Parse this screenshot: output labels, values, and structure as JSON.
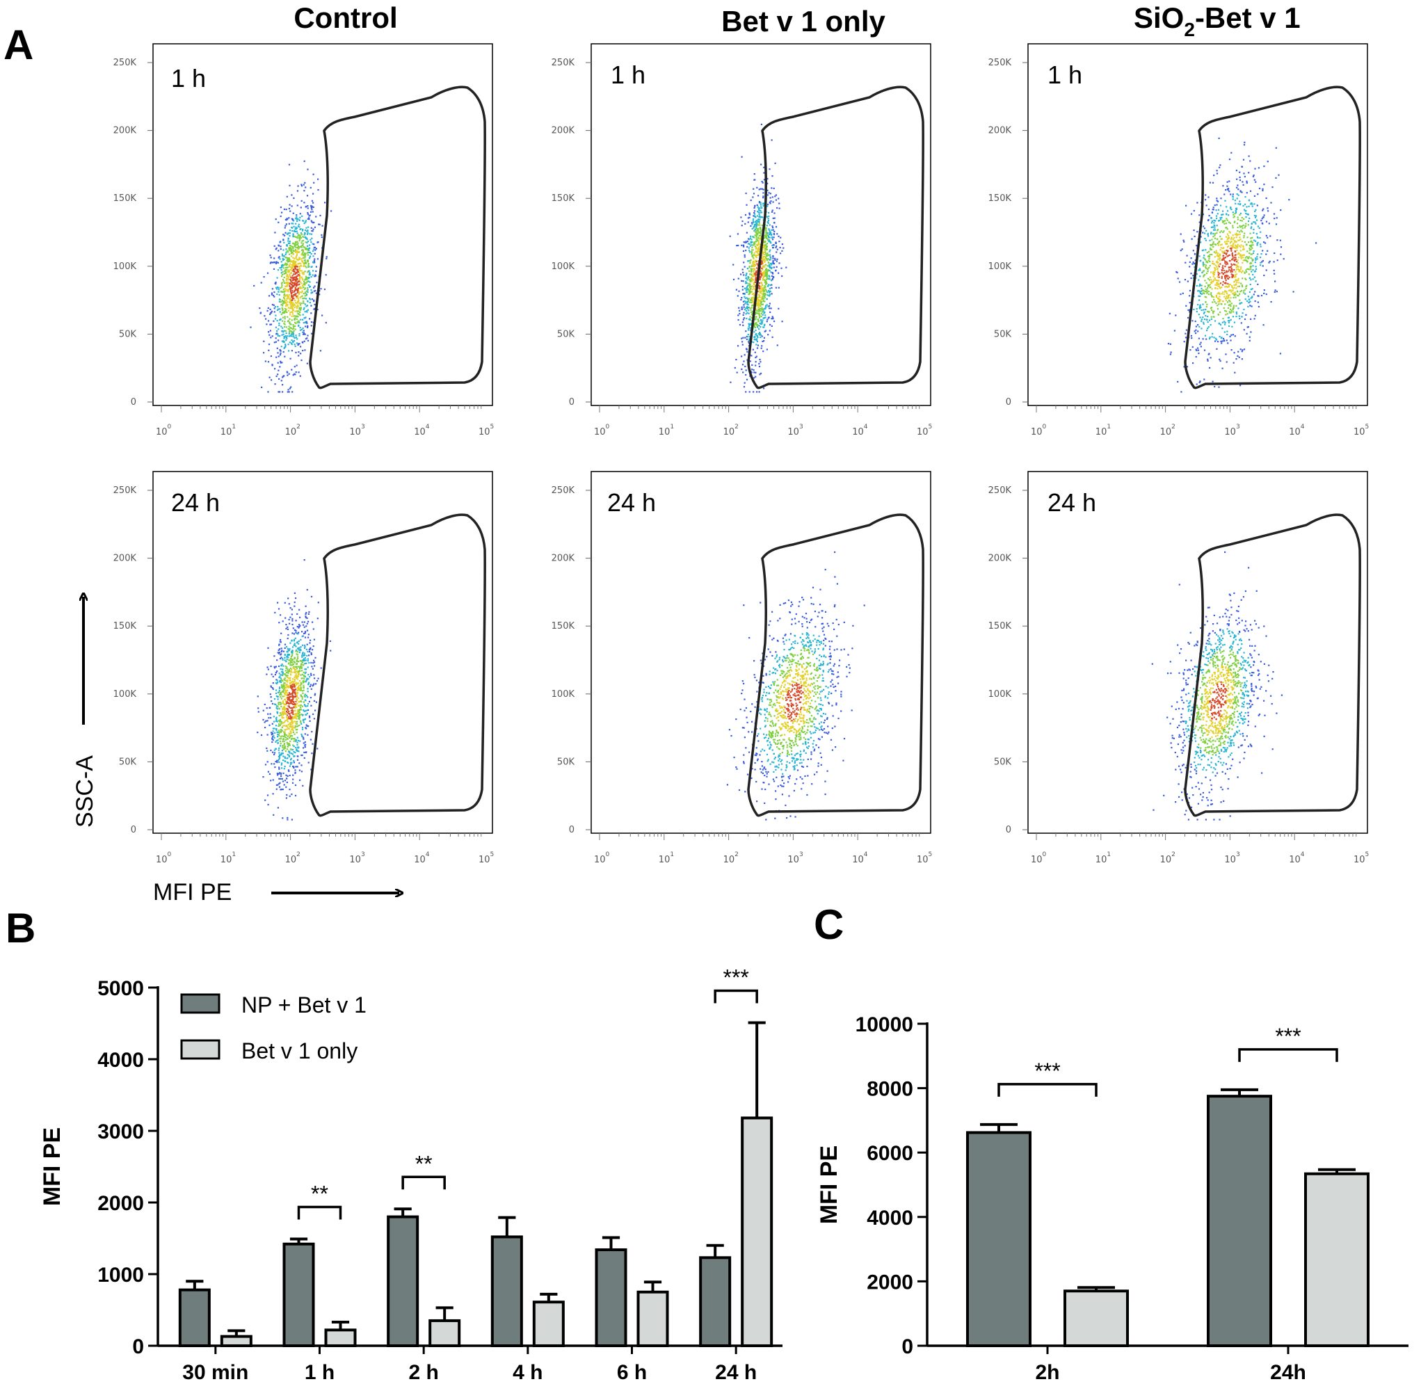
{
  "figure": {
    "panel_letters": [
      "A",
      "B",
      "C"
    ],
    "column_titles": [
      "Control",
      "Bet v 1 only",
      "SiO",
      "2",
      "-Bet v 1"
    ],
    "row_times": [
      "1 h",
      "24 h"
    ],
    "flow_axis": {
      "y_ticks": [
        "250K",
        "200K",
        "150K",
        "100K",
        "50K",
        "0"
      ],
      "x_ticks": [
        {
          "base": "10",
          "exp": "0"
        },
        {
          "base": "10",
          "exp": "1"
        },
        {
          "base": "10",
          "exp": "2"
        },
        {
          "base": "10",
          "exp": "3"
        },
        {
          "base": "10",
          "exp": "4"
        },
        {
          "base": "10",
          "exp": "5"
        }
      ],
      "y_name": "SSC-A",
      "x_name": "MFI PE"
    },
    "colors": {
      "dark_bar": "#6f7e7c",
      "light_bar": "#d4d9d8",
      "dot_blue": "#3a5bdc",
      "dot_cyan": "#27b3d2",
      "dot_green": "#7ed040",
      "dot_yellow": "#e3d02a",
      "dot_red": "#d64a2a"
    }
  },
  "chart_data": [
    {
      "id": "A",
      "type": "scatter",
      "description_units": "log10 MFI PE (x) vs SSC-A (y)",
      "xlim": [
        0,
        5
      ],
      "ylim": [
        0,
        250000
      ],
      "panels": [
        {
          "column": "Control",
          "time": "1 h",
          "center_log": 2.05,
          "center_ssc": 88000,
          "spread_log": 0.18,
          "spread_ssc": 28000
        },
        {
          "column": "Bet v 1 only",
          "time": "1 h",
          "center_log": 2.45,
          "center_ssc": 95000,
          "spread_log": 0.13,
          "spread_ssc": 30000
        },
        {
          "column": "SiO2-Bet v 1",
          "time": "1 h",
          "center_log": 2.95,
          "center_ssc": 100000,
          "spread_log": 0.32,
          "spread_ssc": 30000
        },
        {
          "column": "Control",
          "time": "24 h",
          "center_log": 2.0,
          "center_ssc": 95000,
          "spread_log": 0.17,
          "spread_ssc": 28000
        },
        {
          "column": "Bet v 1 only",
          "time": "24 h",
          "center_log": 3.0,
          "center_ssc": 95000,
          "spread_log": 0.33,
          "spread_ssc": 30000
        },
        {
          "column": "SiO2-Bet v 1",
          "time": "24 h",
          "center_log": 2.8,
          "center_ssc": 95000,
          "spread_log": 0.3,
          "spread_ssc": 30000
        }
      ]
    },
    {
      "id": "B",
      "type": "bar",
      "categories": [
        "30 min",
        "1 h",
        "2 h",
        "4 h",
        "6 h",
        "24 h"
      ],
      "series": [
        {
          "name": "NP + Bet v 1",
          "values": [
            780,
            1420,
            1800,
            1520,
            1340,
            1230
          ],
          "errors": [
            120,
            70,
            110,
            270,
            170,
            170
          ]
        },
        {
          "name": "Bet v 1 only",
          "values": [
            130,
            220,
            350,
            610,
            750,
            3180
          ],
          "errors": [
            80,
            110,
            180,
            110,
            140,
            1330
          ]
        }
      ],
      "ylabel": "MFI PE",
      "ylim": [
        0,
        5000
      ],
      "yticks": [
        0,
        1000,
        2000,
        3000,
        4000,
        5000
      ],
      "significance": [
        {
          "category": "1 h",
          "label": "**"
        },
        {
          "category": "2 h",
          "label": "**"
        },
        {
          "category": "24 h",
          "label": "***"
        }
      ],
      "legend": "top-left"
    },
    {
      "id": "C",
      "type": "bar",
      "categories": [
        "2h",
        "24h"
      ],
      "series": [
        {
          "name": "NP + Bet v 1",
          "values": [
            6620,
            7750
          ],
          "errors": [
            250,
            200
          ]
        },
        {
          "name": "Bet v 1 only",
          "values": [
            1700,
            5340
          ],
          "errors": [
            110,
            130
          ]
        }
      ],
      "ylabel": "MFI PE",
      "ylim": [
        0,
        10000
      ],
      "yticks": [
        0,
        2000,
        4000,
        6000,
        8000,
        10000
      ],
      "significance": [
        {
          "category": "2h",
          "label": "***"
        },
        {
          "category": "24h",
          "label": "***"
        }
      ]
    }
  ]
}
